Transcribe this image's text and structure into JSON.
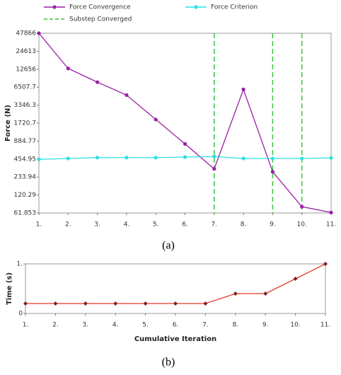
{
  "chart_data": [
    {
      "type": "line",
      "caption": "(a)",
      "ylabel": "Force (N)",
      "log_y": true,
      "x": [
        1,
        2,
        3,
        4,
        5,
        6,
        7,
        8,
        9,
        10,
        11
      ],
      "xlim": [
        1,
        11
      ],
      "xticks": [
        {
          "value": 1,
          "label": "1."
        },
        {
          "value": 2,
          "label": "2."
        },
        {
          "value": 3,
          "label": "3."
        },
        {
          "value": 4,
          "label": "4."
        },
        {
          "value": 5,
          "label": "5."
        },
        {
          "value": 6,
          "label": "6."
        },
        {
          "value": 7,
          "label": "7."
        },
        {
          "value": 8,
          "label": "8."
        },
        {
          "value": 9,
          "label": "9."
        },
        {
          "value": 10,
          "label": "10."
        },
        {
          "value": 11,
          "label": "11."
        }
      ],
      "ylim": [
        61.853,
        47866
      ],
      "yticks": [
        61.853,
        120.29,
        233.94,
        454.95,
        884.77,
        1720.7,
        3346.3,
        6507.7,
        12656,
        24613,
        47866
      ],
      "series": [
        {
          "name": "Force Convergence",
          "color": "#9a1fa5",
          "marker": "circle",
          "values": [
            47866,
            13000,
            7840,
            4855,
            1965,
            797,
            316,
            6000,
            284,
            78,
            63
          ]
        },
        {
          "name": "Force Criterion",
          "color": "#2fe0e0",
          "marker": "circle",
          "values": [
            450,
            465,
            480,
            480,
            480,
            490,
            500,
            465,
            465,
            465,
            475
          ]
        }
      ],
      "substeps": {
        "name": "Substep Converged",
        "color": "#3cc43c",
        "x": [
          7,
          9,
          10
        ]
      }
    },
    {
      "type": "line",
      "caption": "(b)",
      "ylabel": "Time (s)",
      "xlabel": "Cumulative Iteration",
      "log_y": false,
      "x": [
        1,
        2,
        3,
        4,
        5,
        6,
        7,
        8,
        9,
        10,
        11
      ],
      "xlim": [
        1,
        11
      ],
      "xticks": [
        {
          "value": 1,
          "label": "1."
        },
        {
          "value": 2,
          "label": "2."
        },
        {
          "value": 3,
          "label": "3."
        },
        {
          "value": 4,
          "label": "4."
        },
        {
          "value": 5,
          "label": "5."
        },
        {
          "value": 6,
          "label": "6."
        },
        {
          "value": 7,
          "label": "7."
        },
        {
          "value": 8,
          "label": "8."
        },
        {
          "value": 9,
          "label": "9."
        },
        {
          "value": 10,
          "label": "10."
        },
        {
          "value": 11,
          "label": "11."
        }
      ],
      "ylim": [
        0,
        1
      ],
      "yticks": [
        0,
        {
          "value": 1,
          "label": "1."
        }
      ],
      "series": [
        {
          "color": "#e23a2a",
          "marker": "diamond",
          "marker_color": "#8b1a1a",
          "values": [
            0.2,
            0.2,
            0.2,
            0.2,
            0.2,
            0.2,
            0.2,
            0.4,
            0.4,
            0.7,
            1
          ]
        }
      ]
    }
  ]
}
